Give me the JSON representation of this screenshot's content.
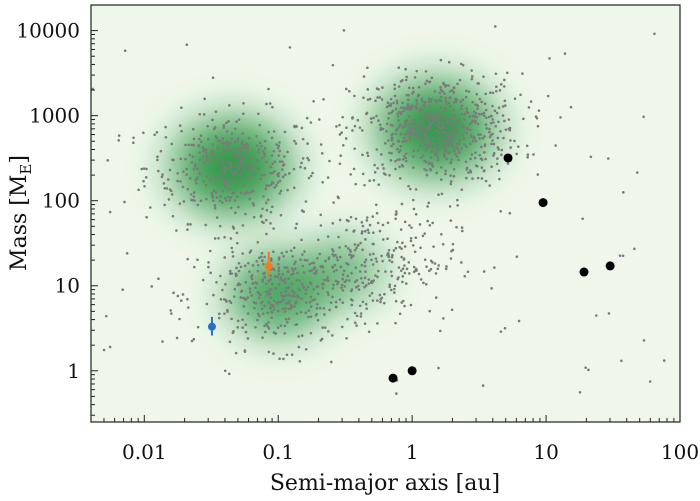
{
  "chart_data": {
    "type": "scatter",
    "title": "",
    "xlabel": "Semi-major axis [au]",
    "ylabel": "Mass [M",
    "ylabel_subscript": "E",
    "ylabel_close": "]",
    "x_scale": "log",
    "y_scale": "log",
    "xlim": [
      0.004,
      100
    ],
    "ylim": [
      0.25,
      20000
    ],
    "x_ticks": [
      0.01,
      0.1,
      1,
      10,
      100
    ],
    "x_tick_labels": [
      "0.01",
      "0.1",
      "1",
      "10",
      "100"
    ],
    "y_ticks": [
      1,
      10,
      100,
      1000,
      10000
    ],
    "y_tick_labels": [
      "1",
      "10",
      "100",
      "1000",
      "10000"
    ],
    "grid": false,
    "legend": "none",
    "density_background": {
      "color": "#1e8f3a",
      "base_color": "#eef7ea",
      "peaks": [
        {
          "x": 0.045,
          "y": 250,
          "weight": 1.0
        },
        {
          "x": 1.5,
          "y": 700,
          "weight": 1.0
        },
        {
          "x": 0.1,
          "y": 8,
          "weight": 0.75
        },
        {
          "x": 0.3,
          "y": 15,
          "weight": 0.45
        }
      ]
    },
    "series": [
      {
        "label": "simulated planets",
        "color": "#7a7a7a",
        "marker": "small dot",
        "clusters": [
          {
            "x_center": 0.045,
            "y_center": 250,
            "count": 380
          },
          {
            "x_center": 1.5,
            "y_center": 700,
            "count": 650
          },
          {
            "x_center": 0.11,
            "y_center": 8,
            "count": 380
          },
          {
            "x_center": 0.5,
            "y_center": 20,
            "count": 250
          }
        ]
      },
      {
        "label": "solar system planets",
        "color": "#000000",
        "marker": "large dot",
        "points": [
          {
            "x": 0.72,
            "y": 0.82
          },
          {
            "x": 1.0,
            "y": 1.0
          },
          {
            "x": 5.2,
            "y": 318
          },
          {
            "x": 9.5,
            "y": 95
          },
          {
            "x": 19.2,
            "y": 14.5
          },
          {
            "x": 30.1,
            "y": 17.1
          }
        ]
      },
      {
        "label": "observed planet (blue)",
        "color": "#2a6fc7",
        "marker": "dot with error bar",
        "points": [
          {
            "x": 0.032,
            "y": 3.3,
            "y_err_low": 2.6,
            "y_err_high": 4.3
          }
        ]
      },
      {
        "label": "observed planet (orange)",
        "color": "#f07d1d",
        "marker": "dot with error bar",
        "points": [
          {
            "x": 0.085,
            "y": 17,
            "y_err_low": 13,
            "y_err_high": 25
          }
        ]
      }
    ]
  }
}
